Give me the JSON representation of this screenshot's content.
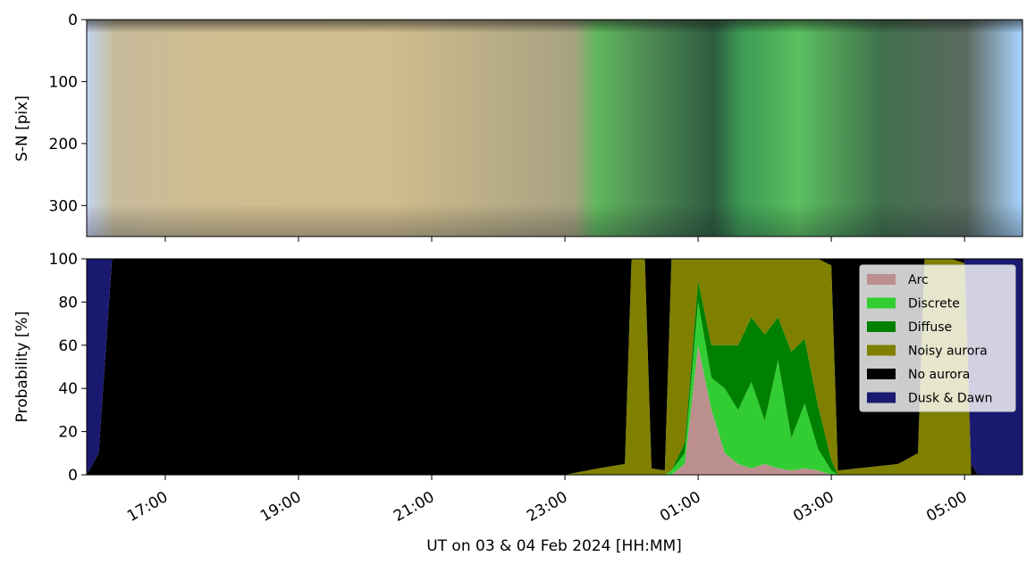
{
  "chart_data": [
    {
      "type": "image",
      "ylabel": "S-N [pix]",
      "ylim": [
        350,
        0
      ],
      "yticks": [
        0,
        100,
        200,
        300
      ],
      "xlim": [
        15.82,
        29.87
      ]
    },
    {
      "type": "stackplot",
      "ylabel": "Probability [%]",
      "xlabel": "UT on 03 & 04 Feb 2024 [HH:MM]",
      "xlim": [
        15.82,
        29.87
      ],
      "xticks": [
        {
          "value": 17,
          "label": "17:00"
        },
        {
          "value": 19,
          "label": "19:00"
        },
        {
          "value": 21,
          "label": "21:00"
        },
        {
          "value": 23,
          "label": "23:00"
        },
        {
          "value": 25,
          "label": "01:00"
        },
        {
          "value": 27,
          "label": "03:00"
        },
        {
          "value": 29,
          "label": "05:00"
        }
      ],
      "ylim": [
        0,
        100
      ],
      "yticks": [
        0,
        20,
        40,
        60,
        80,
        100
      ],
      "legend": "upper right",
      "x": [
        15.82,
        16.0,
        16.2,
        17,
        18,
        19,
        20,
        21,
        22,
        23,
        23.5,
        23.9,
        24.0,
        24.2,
        24.3,
        24.5,
        24.6,
        24.8,
        25.0,
        25.2,
        25.4,
        25.6,
        25.8,
        26.0,
        26.2,
        26.4,
        26.6,
        26.8,
        27.0,
        27.1,
        28.0,
        28.3,
        28.4,
        28.8,
        29.0,
        29.1,
        29.2,
        29.87
      ],
      "series": [
        {
          "name": "Arc",
          "color": "#bc8f8f",
          "values": [
            0,
            0,
            0,
            0,
            0,
            0,
            0,
            0,
            0,
            0,
            0,
            0,
            0,
            0,
            0,
            0,
            0,
            5,
            60,
            30,
            10,
            5,
            3,
            5,
            3,
            2,
            3,
            2,
            0,
            0,
            0,
            0,
            0,
            0,
            0,
            0,
            0,
            0
          ]
        },
        {
          "name": "Discrete",
          "color": "#32cd32",
          "values": [
            0,
            0,
            0,
            0,
            0,
            0,
            0,
            0,
            0,
            0,
            0,
            0,
            0,
            0,
            0,
            0,
            2,
            5,
            20,
            15,
            30,
            25,
            40,
            20,
            50,
            15,
            30,
            10,
            2,
            0,
            0,
            0,
            0,
            0,
            0,
            0,
            0,
            0
          ]
        },
        {
          "name": "Diffuse",
          "color": "#008000",
          "values": [
            0,
            0,
            0,
            0,
            0,
            0,
            0,
            0,
            0,
            0,
            0,
            0,
            0,
            0,
            0,
            0,
            0,
            5,
            10,
            15,
            20,
            30,
            30,
            40,
            20,
            40,
            30,
            20,
            5,
            0,
            0,
            0,
            0,
            0,
            0,
            0,
            0,
            0
          ]
        },
        {
          "name": "Noisy aurora",
          "color": "#808000",
          "values": [
            0,
            0,
            0,
            0,
            0,
            0,
            0,
            0,
            0,
            0,
            3,
            5,
            100,
            100,
            3,
            2,
            98,
            85,
            10,
            40,
            40,
            40,
            27,
            35,
            27,
            43,
            37,
            68,
            90,
            2,
            5,
            10,
            100,
            100,
            98,
            0,
            0,
            0
          ]
        },
        {
          "name": "No aurora",
          "color": "#000000",
          "values": [
            0,
            10,
            100,
            100,
            100,
            100,
            100,
            100,
            100,
            100,
            97,
            95,
            0,
            0,
            97,
            98,
            0,
            0,
            0,
            0,
            0,
            0,
            0,
            0,
            0,
            0,
            0,
            0,
            3,
            98,
            95,
            90,
            0,
            0,
            2,
            5,
            0,
            0
          ]
        },
        {
          "name": "Dusk & Dawn",
          "color": "#191970",
          "values": [
            100,
            90,
            0,
            0,
            0,
            0,
            0,
            0,
            0,
            0,
            0,
            0,
            0,
            0,
            0,
            0,
            0,
            0,
            0,
            0,
            0,
            0,
            0,
            0,
            0,
            0,
            0,
            0,
            0,
            0,
            0,
            0,
            0,
            0,
            0,
            95,
            100,
            100
          ]
        }
      ]
    }
  ]
}
